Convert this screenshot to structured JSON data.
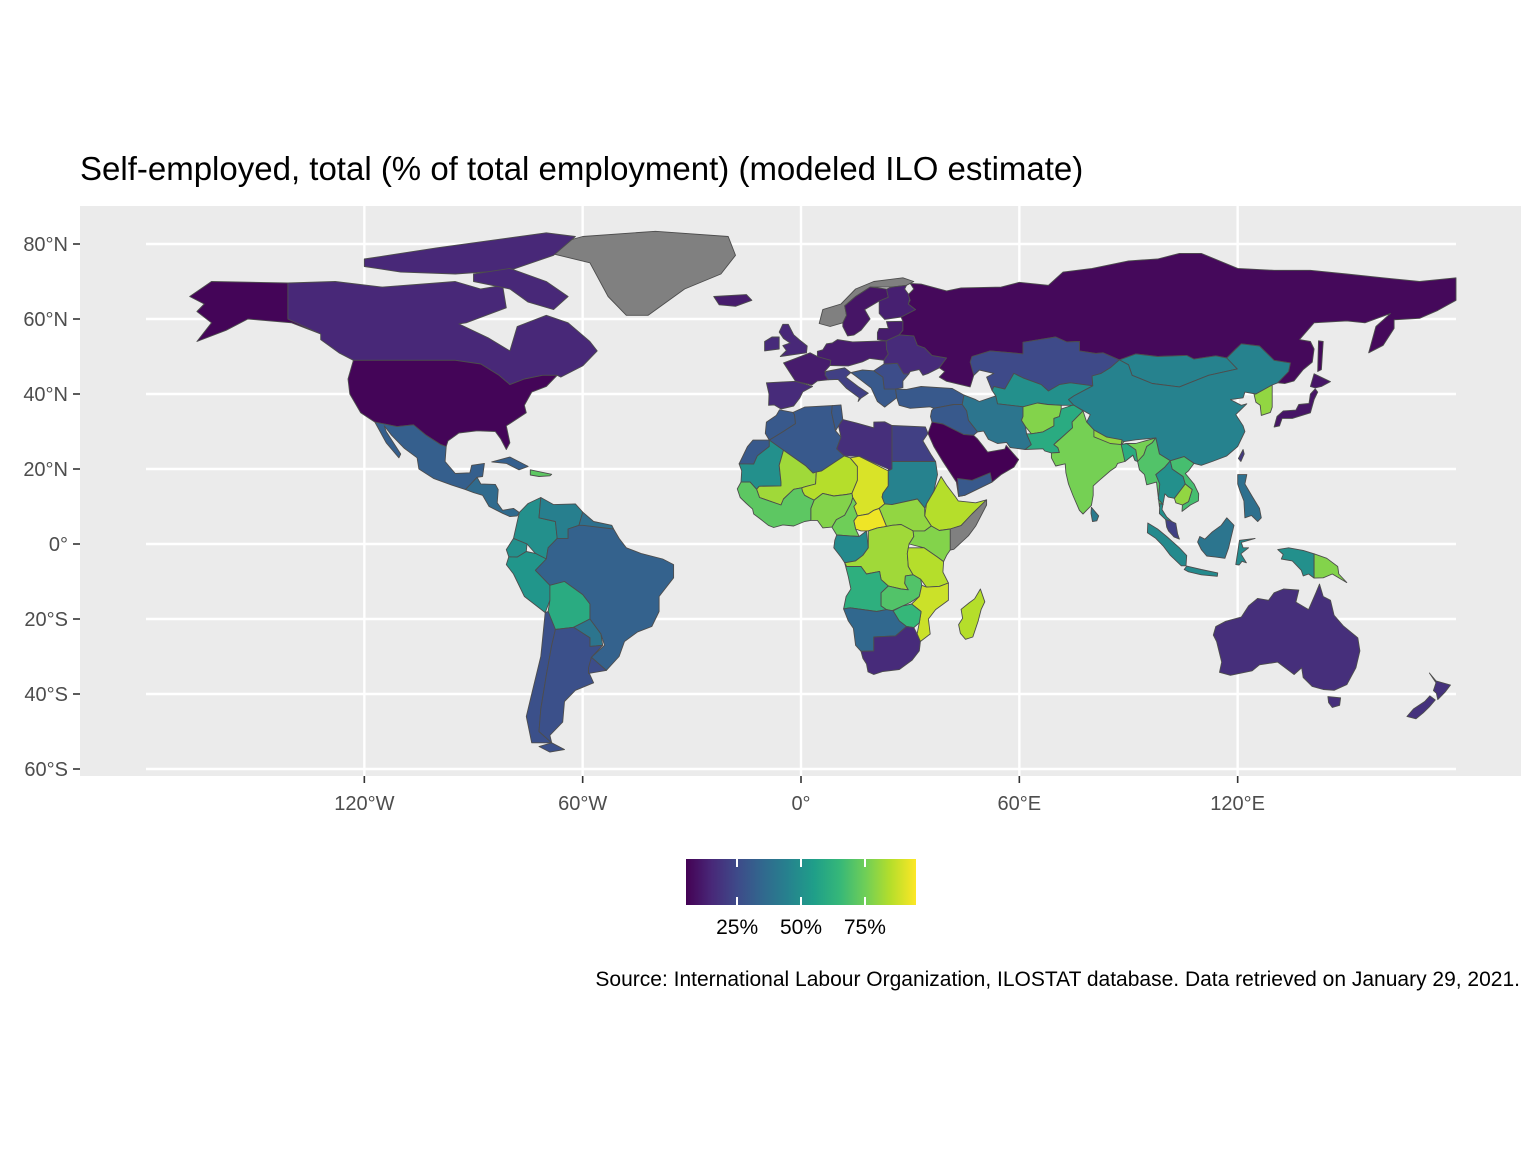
{
  "title": "Self-employed, total (% of total employment) (modeled ILO estimate)",
  "caption": "Source: International Labour Organization, ILOSTAT database. Data retrieved on January 29, 2021.",
  "map": {
    "projection": "equirectangular",
    "xlim": [
      -180,
      180
    ],
    "ylim": [
      -60,
      85
    ],
    "lat_ticks": [
      "80°N",
      "60°N",
      "40°N",
      "20°N",
      "0°",
      "20°S",
      "40°S",
      "60°S"
    ],
    "lon_ticks": [
      "120°W",
      "60°W",
      "0°",
      "60°E",
      "120°E"
    ],
    "panel_background": "#ebebeb",
    "grid_color": "#ffffff",
    "na_color": "#808080",
    "border_color": "#4d4d4d"
  },
  "legend": {
    "palette": "viridis",
    "labels": [
      "25%",
      "50%",
      "75%"
    ],
    "range": [
      5,
      95
    ],
    "colors": [
      "#440154",
      "#482878",
      "#3e4a89",
      "#31688e",
      "#26828e",
      "#1f9e89",
      "#35b779",
      "#6ece58",
      "#b5de2b",
      "#fde725"
    ]
  },
  "chart_data": {
    "type": "choropleth",
    "value_unit": "% of total employment",
    "regions": [
      {
        "name": "Canada",
        "value": 15
      },
      {
        "name": "United States",
        "value": 6
      },
      {
        "name": "Mexico",
        "value": 32
      },
      {
        "name": "Brazil",
        "value": 33
      },
      {
        "name": "Bolivia",
        "value": 60
      },
      {
        "name": "Argentina",
        "value": 27
      },
      {
        "name": "Greenland",
        "value": null
      },
      {
        "name": "Russia",
        "value": 7
      },
      {
        "name": "Kazakhstan",
        "value": 25
      },
      {
        "name": "China",
        "value": 45
      },
      {
        "name": "India",
        "value": 76
      },
      {
        "name": "Afghanistan",
        "value": 78
      },
      {
        "name": "Saudi Arabia",
        "value": 4
      },
      {
        "name": "Chad",
        "value": 90
      },
      {
        "name": "Niger",
        "value": 85
      },
      {
        "name": "DR Congo",
        "value": 82
      },
      {
        "name": "Angola",
        "value": 62
      },
      {
        "name": "Namibia",
        "value": 35
      },
      {
        "name": "South Africa",
        "value": 16
      },
      {
        "name": "Madagascar",
        "value": 85
      },
      {
        "name": "Australia",
        "value": 17
      },
      {
        "name": "Papua New Guinea",
        "value": 78
      },
      {
        "name": "Indonesia",
        "value": 50
      }
    ]
  }
}
